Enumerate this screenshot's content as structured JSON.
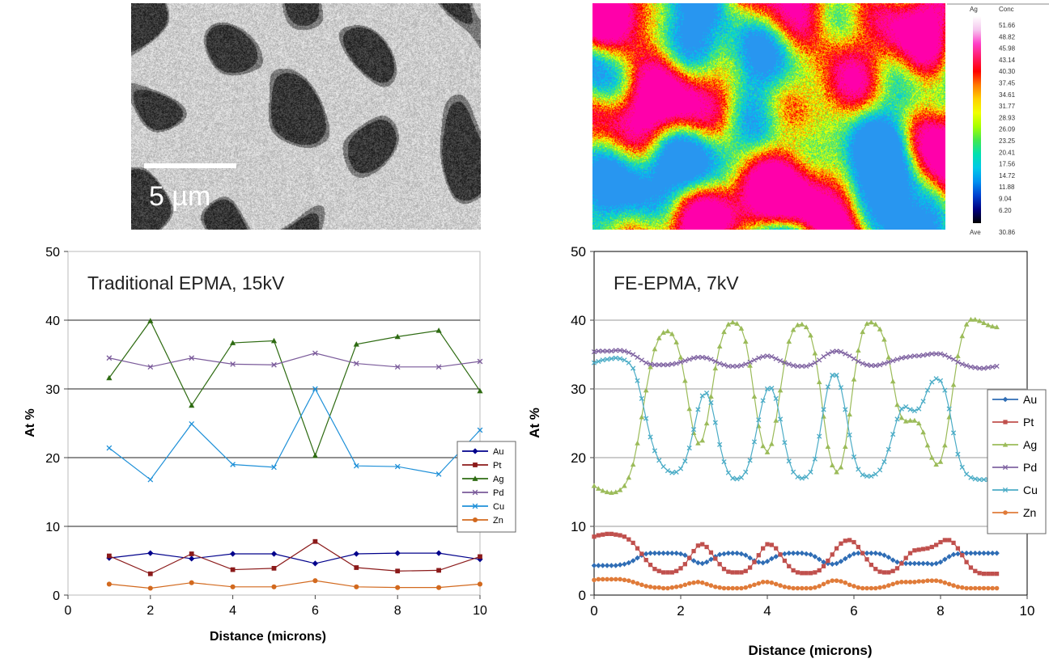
{
  "bse_image": {
    "scale_bar_label": "5 µm"
  },
  "ag_map": {
    "element": "Ag",
    "column_label": "Conc",
    "levels": [
      "51.66",
      "48.82",
      "45.98",
      "43.14",
      "40.30",
      "37.45",
      "34.61",
      "31.77",
      "28.93",
      "26.09",
      "23.25",
      "20.41",
      "17.56",
      "14.72",
      "11.88",
      "9.04",
      "6.20"
    ],
    "ave_label": "Ave",
    "ave_value": "30.86",
    "palette": [
      "#ffffff",
      "#f5c6ee",
      "#ff40c8",
      "#ff1a66",
      "#ff0000",
      "#ff7a00",
      "#ffd000",
      "#f0ff00",
      "#a6ff00",
      "#40e850",
      "#00e0b0",
      "#00c8e8",
      "#0090f0",
      "#0040d0",
      "#000080",
      "#000000"
    ]
  },
  "chart_data": [
    {
      "type": "line",
      "title": "Traditional EPMA, 15kV",
      "xlabel": "Distance (microns)",
      "ylabel": "At %",
      "xlim": [
        0,
        10
      ],
      "ylim": [
        0,
        50
      ],
      "xticks": [
        "0",
        "2",
        "4",
        "6",
        "8",
        "10"
      ],
      "yticks": [
        "0",
        "10",
        "20",
        "30",
        "40",
        "50"
      ],
      "grid": "horizontal",
      "legend_position": "right",
      "x": [
        1,
        2,
        3,
        4,
        5,
        6,
        7,
        8,
        9,
        10
      ],
      "series": [
        {
          "name": "Au",
          "color": "#00008b",
          "marker": "diamond",
          "values": [
            5.4,
            6.1,
            5.3,
            6.0,
            6.0,
            4.6,
            6.0,
            6.1,
            6.1,
            5.2
          ]
        },
        {
          "name": "Pt",
          "color": "#8b1a1a",
          "marker": "square",
          "values": [
            5.7,
            3.1,
            6.0,
            3.7,
            3.9,
            7.8,
            4.0,
            3.5,
            3.6,
            5.6
          ]
        },
        {
          "name": "Ag",
          "color": "#2e6b12",
          "marker": "triangle",
          "values": [
            31.6,
            39.9,
            27.6,
            36.7,
            37.0,
            20.3,
            36.5,
            37.6,
            38.5,
            29.7
          ]
        },
        {
          "name": "Pd",
          "color": "#7a5a9a",
          "marker": "x",
          "values": [
            34.5,
            33.2,
            34.5,
            33.6,
            33.5,
            35.2,
            33.7,
            33.2,
            33.2,
            34.0
          ]
        },
        {
          "name": "Cu",
          "color": "#1e90d8",
          "marker": "x",
          "values": [
            21.4,
            16.8,
            24.9,
            19.0,
            18.6,
            30.0,
            18.8,
            18.7,
            17.6,
            24.0
          ]
        },
        {
          "name": "Zn",
          "color": "#d2691e",
          "marker": "circle",
          "values": [
            1.6,
            1.0,
            1.8,
            1.2,
            1.2,
            2.1,
            1.2,
            1.1,
            1.1,
            1.6
          ]
        }
      ]
    },
    {
      "type": "line",
      "title": "FE-EPMA, 7kV",
      "xlabel": "Distance (microns)",
      "ylabel": "At %",
      "xlim": [
        0,
        10
      ],
      "ylim": [
        0,
        50
      ],
      "xticks": [
        "0",
        "2",
        "4",
        "6",
        "8",
        "10"
      ],
      "yticks": [
        "0",
        "10",
        "20",
        "30",
        "40",
        "50"
      ],
      "grid": "horizontal",
      "legend_position": "right",
      "x": [
        0.0,
        0.1,
        0.2,
        0.3,
        0.4,
        0.5,
        0.6,
        0.7,
        0.8,
        0.9,
        1.0,
        1.1,
        1.2,
        1.3,
        1.4,
        1.5,
        1.6,
        1.7,
        1.8,
        1.9,
        2.0,
        2.1,
        2.2,
        2.3,
        2.4,
        2.5,
        2.6,
        2.7,
        2.8,
        2.9,
        3.0,
        3.1,
        3.2,
        3.3,
        3.4,
        3.5,
        3.6,
        3.7,
        3.8,
        3.9,
        4.0,
        4.1,
        4.2,
        4.3,
        4.4,
        4.5,
        4.6,
        4.7,
        4.8,
        4.9,
        5.0,
        5.1,
        5.2,
        5.3,
        5.4,
        5.5,
        5.6,
        5.7,
        5.8,
        5.9,
        6.0,
        6.1,
        6.2,
        6.3,
        6.4,
        6.5,
        6.6,
        6.7,
        6.8,
        6.9,
        7.0,
        7.1,
        7.2,
        7.3,
        7.4,
        7.5,
        7.6,
        7.7,
        7.8,
        7.9,
        8.0,
        8.1,
        8.2,
        8.3,
        8.4,
        8.5,
        8.6,
        8.7,
        8.8,
        8.9,
        9.0,
        9.1,
        9.2,
        9.3
      ],
      "series": [
        {
          "name": "Au",
          "color": "#2f6db5",
          "marker": "diamond",
          "values": [
            4.3,
            4.3,
            4.3,
            4.3,
            4.3,
            4.3,
            4.4,
            4.5,
            4.7,
            5.0,
            5.4,
            5.8,
            6.0,
            6.1,
            6.1,
            6.1,
            6.1,
            6.1,
            6.1,
            6.1,
            6.0,
            5.8,
            5.4,
            5.0,
            4.7,
            4.6,
            4.8,
            5.2,
            5.6,
            5.9,
            6.0,
            6.1,
            6.1,
            6.1,
            6.0,
            5.8,
            5.4,
            5.0,
            4.8,
            4.7,
            4.9,
            5.3,
            5.6,
            5.9,
            6.0,
            6.1,
            6.1,
            6.1,
            6.1,
            6.0,
            5.9,
            5.6,
            5.2,
            4.8,
            4.6,
            4.5,
            4.6,
            4.9,
            5.3,
            5.7,
            6.0,
            6.1,
            6.1,
            6.1,
            6.1,
            6.1,
            6.0,
            5.8,
            5.5,
            5.1,
            4.8,
            4.7,
            4.6,
            4.6,
            4.6,
            4.6,
            4.6,
            4.6,
            4.5,
            4.6,
            4.8,
            5.2,
            5.6,
            5.9,
            6.0,
            6.1,
            6.1,
            6.1,
            6.1,
            6.1,
            6.1,
            6.1,
            6.1,
            6.1
          ]
        },
        {
          "name": "Pt",
          "color": "#c0504d",
          "marker": "square",
          "values": [
            8.5,
            8.7,
            8.8,
            8.9,
            8.9,
            8.8,
            8.7,
            8.5,
            8.1,
            7.6,
            6.8,
            6.0,
            5.1,
            4.4,
            3.8,
            3.5,
            3.3,
            3.3,
            3.3,
            3.5,
            3.9,
            4.5,
            5.4,
            6.4,
            7.2,
            7.4,
            7.0,
            6.2,
            5.3,
            4.5,
            3.8,
            3.4,
            3.3,
            3.3,
            3.3,
            3.5,
            4.0,
            4.8,
            5.8,
            6.8,
            7.4,
            7.3,
            6.8,
            5.9,
            5.0,
            4.2,
            3.6,
            3.3,
            3.2,
            3.2,
            3.2,
            3.3,
            3.6,
            4.2,
            5.0,
            5.9,
            6.8,
            7.5,
            7.9,
            8.0,
            7.7,
            7.0,
            6.1,
            5.2,
            4.4,
            3.8,
            3.4,
            3.3,
            3.3,
            3.5,
            3.9,
            4.6,
            5.4,
            6.1,
            6.5,
            6.6,
            6.7,
            6.8,
            7.0,
            7.3,
            7.7,
            8.0,
            8.0,
            7.6,
            6.8,
            5.8,
            4.8,
            4.0,
            3.5,
            3.2,
            3.1,
            3.1,
            3.1,
            3.1
          ]
        },
        {
          "name": "Ag",
          "color": "#9bbb59",
          "marker": "triangle",
          "values": [
            15.9,
            15.5,
            15.2,
            15.0,
            14.9,
            15.0,
            15.3,
            15.9,
            17.1,
            19.0,
            22.1,
            25.9,
            29.8,
            33.2,
            35.8,
            37.4,
            38.2,
            38.4,
            38.0,
            36.8,
            34.6,
            31.2,
            27.1,
            23.6,
            22.1,
            22.5,
            25.0,
            28.9,
            33.0,
            36.2,
            38.3,
            39.4,
            39.7,
            39.5,
            38.8,
            36.9,
            33.4,
            28.9,
            24.6,
            21.7,
            20.8,
            22.0,
            25.4,
            29.8,
            33.9,
            36.9,
            38.6,
            39.3,
            39.4,
            39.0,
            37.8,
            35.2,
            31.0,
            26.0,
            21.6,
            18.9,
            17.9,
            18.6,
            21.6,
            26.3,
            31.4,
            35.6,
            38.3,
            39.5,
            39.7,
            39.4,
            38.7,
            37.2,
            34.6,
            31.1,
            27.7,
            25.8,
            25.3,
            25.4,
            25.4,
            25.0,
            23.7,
            21.8,
            20.0,
            19.0,
            19.4,
            21.8,
            25.9,
            30.6,
            34.8,
            37.7,
            39.4,
            40.1,
            40.1,
            39.9,
            39.6,
            39.3,
            39.1,
            39.0
          ]
        },
        {
          "name": "Pd",
          "color": "#8064a2",
          "marker": "x",
          "values": [
            35.4,
            35.5,
            35.5,
            35.5,
            35.5,
            35.6,
            35.6,
            35.5,
            35.3,
            35.0,
            34.6,
            34.2,
            33.8,
            33.6,
            33.5,
            33.5,
            33.5,
            33.5,
            33.6,
            33.7,
            33.9,
            34.1,
            34.3,
            34.5,
            34.6,
            34.6,
            34.5,
            34.3,
            34.0,
            33.7,
            33.5,
            33.3,
            33.3,
            33.3,
            33.4,
            33.6,
            33.9,
            34.2,
            34.5,
            34.7,
            34.8,
            34.7,
            34.4,
            34.1,
            33.8,
            33.6,
            33.4,
            33.3,
            33.3,
            33.3,
            33.5,
            33.8,
            34.2,
            34.7,
            35.1,
            35.4,
            35.5,
            35.4,
            35.1,
            34.8,
            34.4,
            34.0,
            33.7,
            33.5,
            33.4,
            33.4,
            33.5,
            33.7,
            33.9,
            34.1,
            34.3,
            34.5,
            34.6,
            34.7,
            34.8,
            34.8,
            34.9,
            35.0,
            35.1,
            35.1,
            35.1,
            34.9,
            34.6,
            34.3,
            33.9,
            33.6,
            33.4,
            33.2,
            33.1,
            33.0,
            33.0,
            33.1,
            33.2,
            33.3
          ]
        },
        {
          "name": "Cu",
          "color": "#4bacc6",
          "marker": "x",
          "values": [
            33.8,
            34.0,
            34.2,
            34.3,
            34.4,
            34.5,
            34.4,
            34.2,
            33.8,
            33.0,
            31.2,
            28.6,
            25.7,
            23.0,
            21.0,
            19.6,
            18.7,
            18.1,
            17.8,
            17.9,
            18.4,
            19.5,
            21.4,
            24.1,
            27.0,
            29.0,
            29.4,
            28.0,
            25.1,
            21.9,
            19.4,
            17.8,
            17.0,
            16.9,
            17.1,
            17.9,
            19.6,
            22.3,
            25.5,
            28.3,
            30.0,
            30.1,
            28.6,
            25.6,
            22.2,
            19.5,
            17.9,
            17.2,
            17.0,
            17.2,
            17.9,
            19.8,
            23.1,
            27.0,
            30.3,
            32.0,
            32.0,
            30.2,
            27.0,
            23.3,
            20.1,
            18.3,
            17.5,
            17.3,
            17.3,
            17.6,
            18.2,
            19.4,
            21.2,
            23.4,
            25.6,
            27.1,
            27.4,
            27.0,
            26.8,
            27.1,
            28.2,
            29.8,
            31.0,
            31.5,
            31.2,
            29.8,
            27.1,
            23.6,
            20.5,
            18.6,
            17.6,
            17.1,
            16.9,
            16.8,
            16.8,
            16.8,
            16.8,
            16.8
          ]
        },
        {
          "name": "Zn",
          "color": "#e07b39",
          "marker": "circle",
          "values": [
            2.2,
            2.3,
            2.3,
            2.3,
            2.3,
            2.3,
            2.3,
            2.2,
            2.1,
            1.9,
            1.7,
            1.5,
            1.3,
            1.2,
            1.1,
            1.1,
            1.0,
            1.0,
            1.1,
            1.2,
            1.3,
            1.5,
            1.7,
            1.8,
            1.9,
            1.8,
            1.6,
            1.4,
            1.2,
            1.1,
            1.0,
            1.0,
            1.0,
            1.0,
            1.0,
            1.1,
            1.3,
            1.5,
            1.7,
            1.9,
            1.9,
            1.8,
            1.6,
            1.4,
            1.2,
            1.1,
            1.0,
            1.0,
            1.0,
            1.0,
            1.0,
            1.1,
            1.3,
            1.6,
            1.9,
            2.1,
            2.1,
            2.0,
            1.8,
            1.5,
            1.3,
            1.1,
            1.0,
            1.0,
            1.0,
            1.0,
            1.1,
            1.2,
            1.4,
            1.6,
            1.8,
            1.9,
            1.9,
            1.9,
            1.9,
            2.0,
            2.0,
            2.1,
            2.1,
            2.1,
            2.0,
            1.8,
            1.6,
            1.4,
            1.2,
            1.1,
            1.0,
            1.0,
            1.0,
            1.0,
            1.0,
            1.0,
            1.0,
            1.0
          ]
        }
      ]
    }
  ]
}
